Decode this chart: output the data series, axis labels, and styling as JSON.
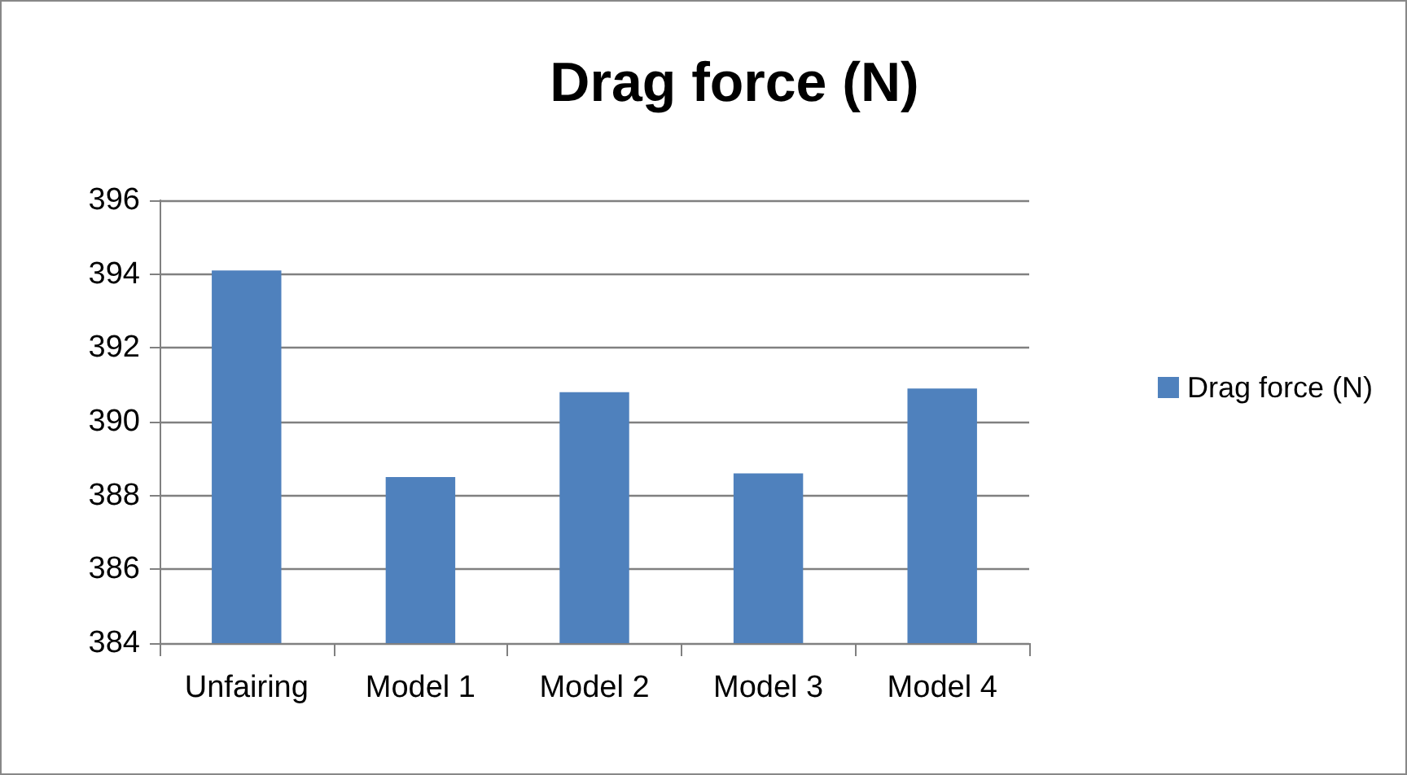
{
  "chart_data": {
    "type": "bar",
    "title": "Drag force (N)",
    "categories": [
      "Unfairing",
      "Model 1",
      "Model 2",
      "Model 3",
      "Model 4"
    ],
    "series": [
      {
        "name": "Drag force (N)",
        "color": "#4f81bd",
        "values": [
          394.1,
          388.5,
          390.8,
          388.6,
          390.9
        ]
      }
    ],
    "ylim": [
      384,
      396
    ],
    "yticks": [
      384,
      386,
      388,
      390,
      392,
      394,
      396
    ],
    "grid": "y",
    "legend": "right"
  }
}
